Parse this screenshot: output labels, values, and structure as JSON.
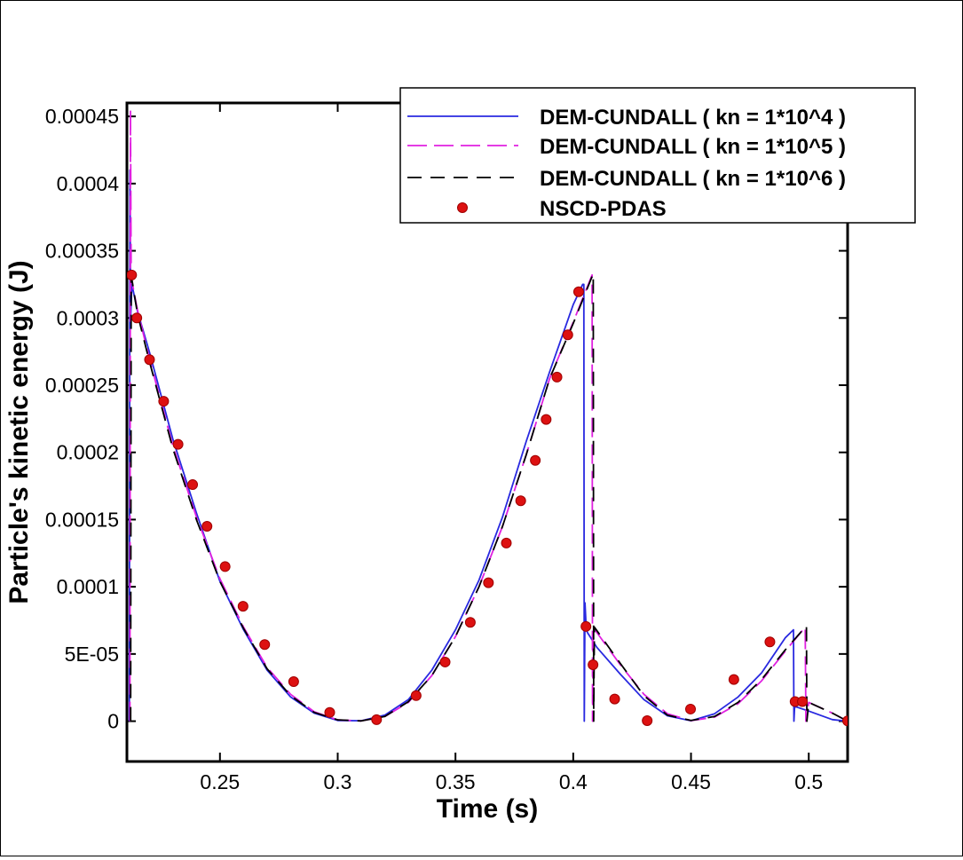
{
  "chart_data": {
    "type": "line",
    "title": "",
    "xlabel": "Time (s)",
    "ylabel": "Particle's kinetic energy (J)",
    "xlim": [
      0.2105,
      0.5165
    ],
    "ylim": [
      -3e-05,
      0.00046
    ],
    "grid": false,
    "legend_position": "top-right",
    "x_ticks": [
      0.25,
      0.3,
      0.35,
      0.4,
      0.45,
      0.5
    ],
    "x_tick_labels": [
      "0.25",
      "0.3",
      "0.35",
      "0.4",
      "0.45",
      "0.5"
    ],
    "y_ticks": [
      0,
      5e-05,
      0.0001,
      0.00015,
      0.0002,
      0.00025,
      0.0003,
      0.00035,
      0.0004,
      0.00045
    ],
    "y_tick_labels": [
      "0",
      "5E-05",
      "0.0001",
      "0.00015",
      "0.0002",
      "0.00025",
      "0.0003",
      "0.00035",
      "0.0004",
      "0.00045"
    ],
    "series": [
      {
        "name": "DEM-CUNDALL ( kn = 1*10^4 )",
        "style": "solid",
        "color": "#2929e0",
        "x": [
          0.2115,
          0.2118,
          0.2121,
          0.2126,
          0.215,
          0.22,
          0.23,
          0.24,
          0.25,
          0.26,
          0.27,
          0.28,
          0.29,
          0.3,
          0.31,
          0.32,
          0.33,
          0.34,
          0.35,
          0.36,
          0.37,
          0.38,
          0.39,
          0.4,
          0.404,
          0.4045,
          0.4047,
          0.405,
          0.4055,
          0.406,
          0.41,
          0.42,
          0.43,
          0.44,
          0.45,
          0.46,
          0.47,
          0.48,
          0.49,
          0.4935,
          0.4937,
          0.494,
          0.5,
          0.51,
          0.5165
        ],
        "y": [
          0,
          0.00041,
          0.0003,
          0.000325,
          0.000305,
          0.000275,
          0.00021,
          0.000155,
          0.000104,
          6.8e-05,
          3.8e-05,
          1.8e-05,
          6e-06,
          5e-07,
          3e-07,
          4.5e-06,
          1.6e-05,
          3.8e-05,
          6.8e-05,
          0.000105,
          0.000152,
          0.000208,
          0.00026,
          0.00031,
          0.000325,
          0.000325,
          0,
          8.8e-05,
          6.9e-05,
          6.6e-05,
          5.5e-05,
          3.5e-05,
          1.6e-05,
          4e-06,
          3e-07,
          5.5e-06,
          1.8e-05,
          3.6e-05,
          6.2e-05,
          6.8e-05,
          0,
          1.1e-05,
          7.5e-06,
          1.2e-06,
          0
        ]
      },
      {
        "name": "DEM-CUNDALL ( kn = 1*10^5 )",
        "style": "dashed",
        "color": "#e020e0",
        "x": [
          0.2118,
          0.212,
          0.2123,
          0.215,
          0.22,
          0.23,
          0.24,
          0.25,
          0.26,
          0.27,
          0.28,
          0.29,
          0.3,
          0.31,
          0.32,
          0.33,
          0.34,
          0.35,
          0.36,
          0.37,
          0.38,
          0.39,
          0.4,
          0.408,
          0.4082,
          0.4085,
          0.41,
          0.42,
          0.43,
          0.44,
          0.45,
          0.46,
          0.47,
          0.48,
          0.49,
          0.4985,
          0.4988,
          0.5,
          0.51,
          0.5165
        ],
        "y": [
          0,
          0.000455,
          0.00033,
          0.000306,
          0.00027,
          0.000205,
          0.000152,
          0.000106,
          7e-05,
          4e-05,
          2e-05,
          7e-06,
          1e-06,
          2e-07,
          3.5e-06,
          1.4e-05,
          3.4e-05,
          6.3e-05,
          0.0001,
          0.000145,
          0.000198,
          0.000255,
          0.000297,
          0.000332,
          0,
          7e-05,
          6.6e-05,
          4.2e-05,
          2e-05,
          5.5e-06,
          4e-07,
          3e-06,
          1.3e-05,
          3e-05,
          5.2e-05,
          7e-05,
          0,
          1.4e-05,
          6e-06,
          0
        ]
      },
      {
        "name": "DEM-CUNDALL ( kn = 1*10^6 )",
        "style": "dashed",
        "color": "#000000",
        "x": [
          0.2121,
          0.2123,
          0.2125,
          0.215,
          0.22,
          0.23,
          0.24,
          0.25,
          0.26,
          0.27,
          0.28,
          0.29,
          0.3,
          0.31,
          0.32,
          0.33,
          0.34,
          0.35,
          0.36,
          0.37,
          0.38,
          0.39,
          0.4,
          0.4085,
          0.4087,
          0.409,
          0.42,
          0.43,
          0.44,
          0.45,
          0.46,
          0.47,
          0.48,
          0.49,
          0.499,
          0.4992,
          0.5,
          0.51,
          0.5165
        ],
        "y": [
          0,
          0.00033,
          0.00033,
          0.000303,
          0.000268,
          0.000203,
          0.00015,
          0.000104,
          6.9e-05,
          3.9e-05,
          1.9e-05,
          6.5e-06,
          1e-06,
          2e-07,
          3.5e-06,
          1.45e-05,
          3.4e-05,
          6.3e-05,
          0.0001,
          0.000145,
          0.000198,
          0.000255,
          0.000296,
          0.000333,
          0,
          7e-05,
          4.3e-05,
          1.9e-05,
          4.5e-06,
          5e-07,
          3.5e-06,
          1.4e-05,
          3.1e-05,
          5.3e-05,
          7.1e-05,
          0,
          1.4e-05,
          6e-06,
          0
        ]
      },
      {
        "name": "NSCD-PDAS",
        "style": "markers",
        "color": "#dd1111",
        "x": [
          0.2125,
          0.2147,
          0.2201,
          0.2261,
          0.2322,
          0.2384,
          0.2445,
          0.2522,
          0.2598,
          0.269,
          0.2813,
          0.2966,
          0.3165,
          0.3333,
          0.3456,
          0.3563,
          0.364,
          0.3716,
          0.3777,
          0.3839,
          0.3885,
          0.3931,
          0.3977,
          0.4023,
          0.4054,
          0.4084,
          0.4176,
          0.4314,
          0.4498,
          0.4682,
          0.4835,
          0.4942,
          0.4973,
          0.5165
        ],
        "y": [
          0.000332,
          0.0003,
          0.000269,
          0.000238,
          0.000206,
          0.000176,
          0.000145,
          0.000115,
          8.55e-05,
          5.7e-05,
          2.94e-05,
          6.5e-06,
          1.1e-06,
          1.9e-05,
          4.4e-05,
          7.35e-05,
          0.000103,
          0.0001325,
          0.000164,
          0.000194,
          0.0002245,
          0.000256,
          0.0002875,
          0.0003195,
          7.05e-05,
          4.2e-05,
          1.65e-05,
          4e-07,
          9e-06,
          3.1e-05,
          5.9e-05,
          1.46e-05,
          1.46e-05,
          2e-07
        ]
      }
    ]
  }
}
